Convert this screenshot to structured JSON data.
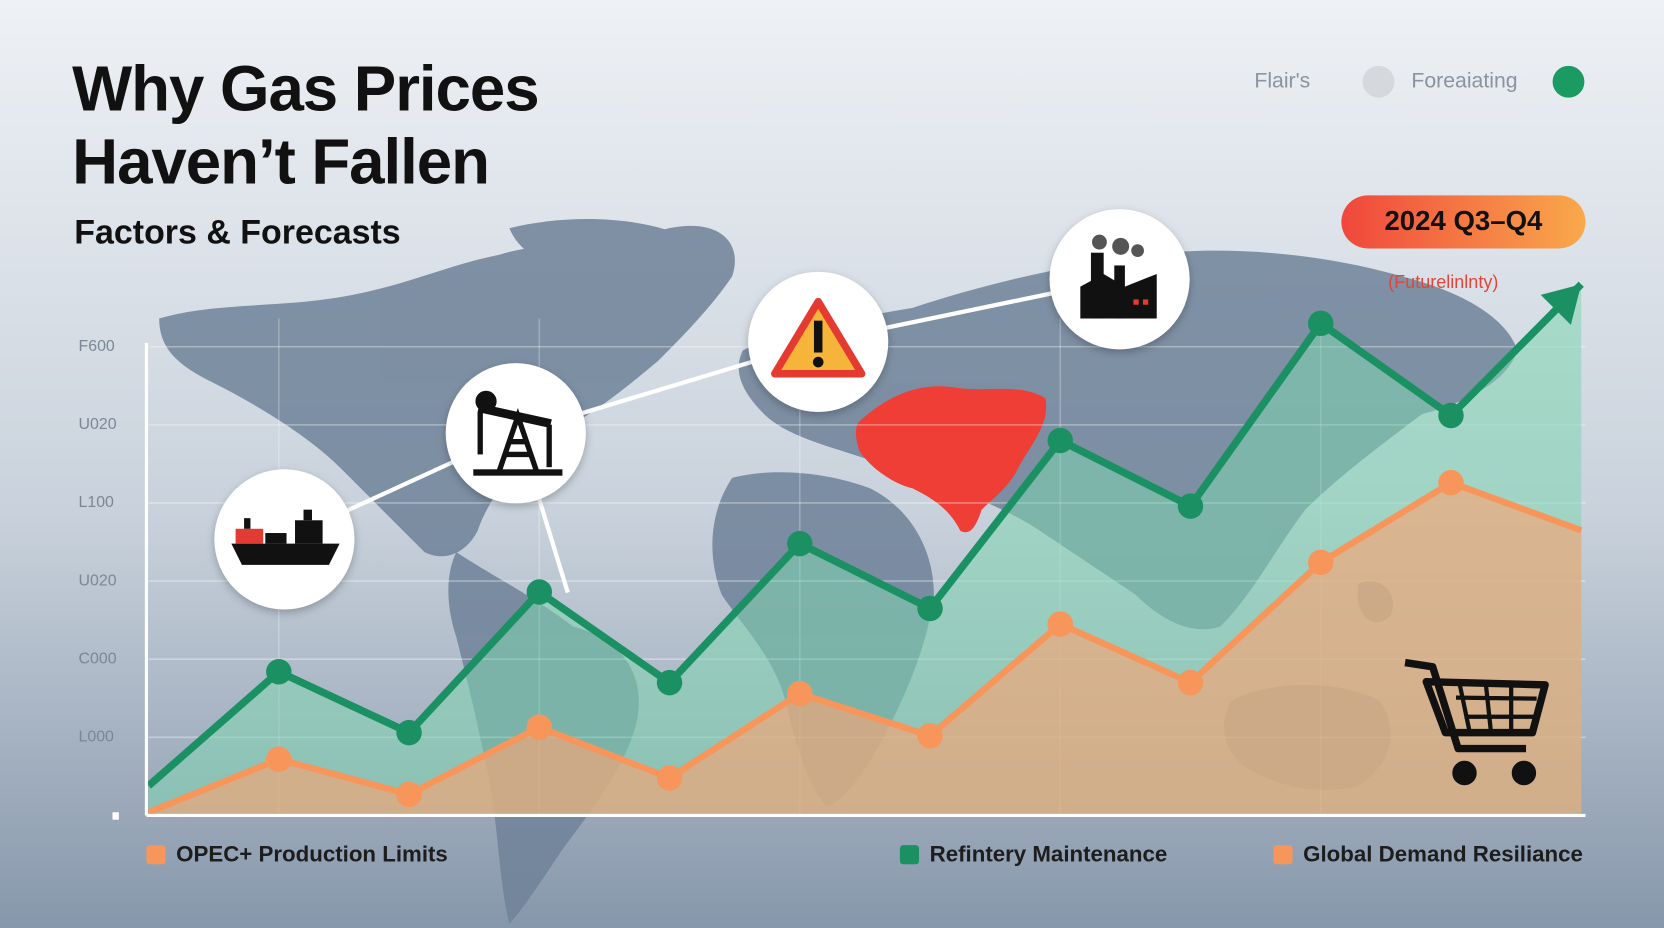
{
  "chart_data": {
    "type": "line",
    "title": "Why Gas Prices",
    "title_line2": "Haven’t Fallen",
    "subtitle": "Factors & Forecasts",
    "badge": "2024 Q3–Q4",
    "annotation": "(Futurelinlnty)",
    "top_legend": [
      {
        "label": "Flair's",
        "color": "#d5d9de"
      },
      {
        "label": "Foreaiating",
        "color": "#1b9a62"
      }
    ],
    "categories": [
      null,
      null,
      null,
      null,
      null,
      null,
      null,
      null,
      null,
      null,
      null,
      null
    ],
    "series": [
      {
        "name": "Refintery Maintenance",
        "color": "#1b9163",
        "values": [
          0.38,
          1.84,
          1.06,
          2.86,
          1.7,
          3.48,
          2.65,
          4.8,
          3.96,
          6.3,
          5.12,
          6.8
        ]
      },
      {
        "name": "Global Demand Resiliance",
        "color": "#f7955a",
        "values": [
          0.04,
          0.72,
          0.27,
          1.13,
          0.48,
          1.56,
          1.02,
          2.45,
          1.7,
          3.24,
          4.26,
          3.65
        ]
      }
    ],
    "extra_legend": [
      {
        "label": "OPEC+ Production Limits",
        "color": "#f7955a"
      }
    ],
    "ylim": [
      0,
      7
    ],
    "yticks": [
      {
        "value": 1,
        "label": "L000"
      },
      {
        "value": 2,
        "label": "C000"
      },
      {
        "value": 3,
        "label": "U020"
      },
      {
        "value": 4,
        "label": "L100"
      },
      {
        "value": 5,
        "label": "U020"
      },
      {
        "value": 6,
        "label": "F600"
      }
    ],
    "grid": true
  }
}
